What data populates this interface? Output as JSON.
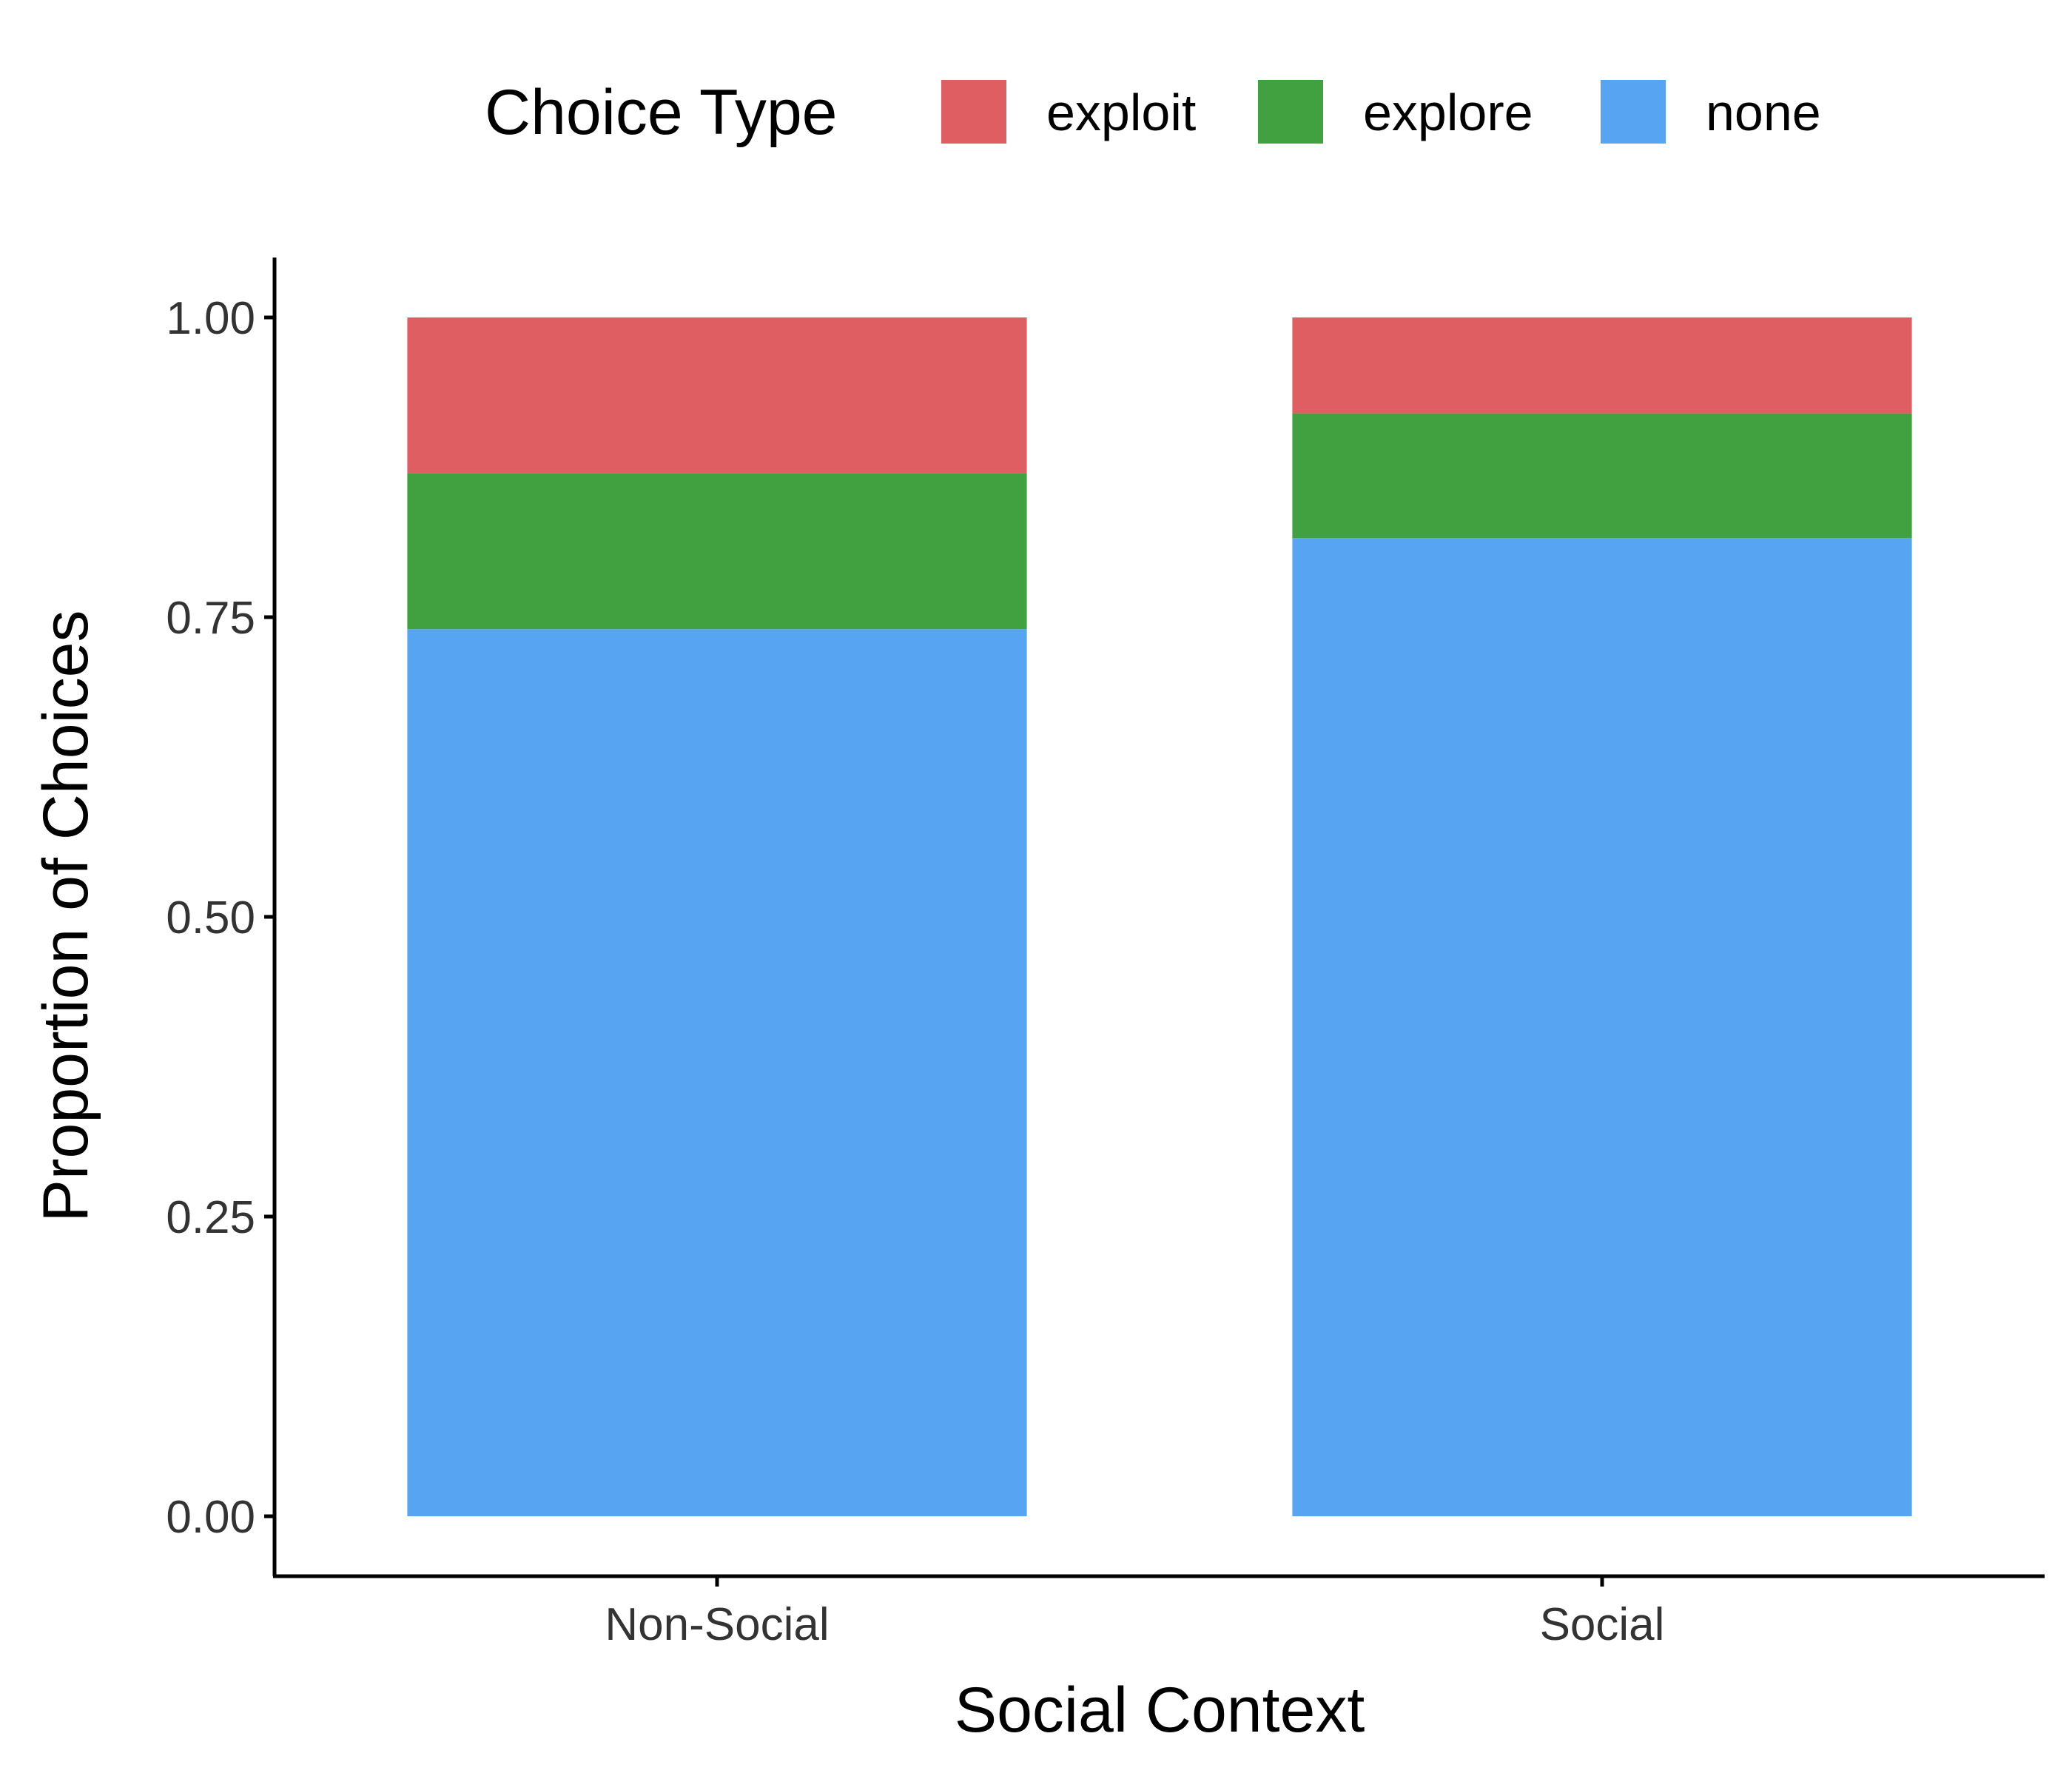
{
  "chart_data": {
    "type": "bar",
    "stacked": true,
    "categories": [
      "Non-Social",
      "Social"
    ],
    "series": [
      {
        "name": "none",
        "color": "#56A4F2",
        "values": [
          0.74,
          0.816
        ]
      },
      {
        "name": "explore",
        "color": "#41A141",
        "values": [
          0.13,
          0.104
        ]
      },
      {
        "name": "exploit",
        "color": "#DF5E61",
        "values": [
          0.13,
          0.08
        ]
      }
    ],
    "legend_order": [
      "exploit",
      "explore",
      "none"
    ],
    "legend_title": "Choice Type",
    "legend_position": "top",
    "xlabel": "Social Context",
    "ylabel": "Proportion of Choices",
    "ylim": [
      -0.05,
      1.05
    ],
    "yticks": [
      0,
      0.25,
      0.5,
      0.75,
      1.0
    ],
    "ytick_labels": [
      "0.00",
      "0.25",
      "0.50",
      "0.75",
      "1.00"
    ],
    "grid": false
  }
}
